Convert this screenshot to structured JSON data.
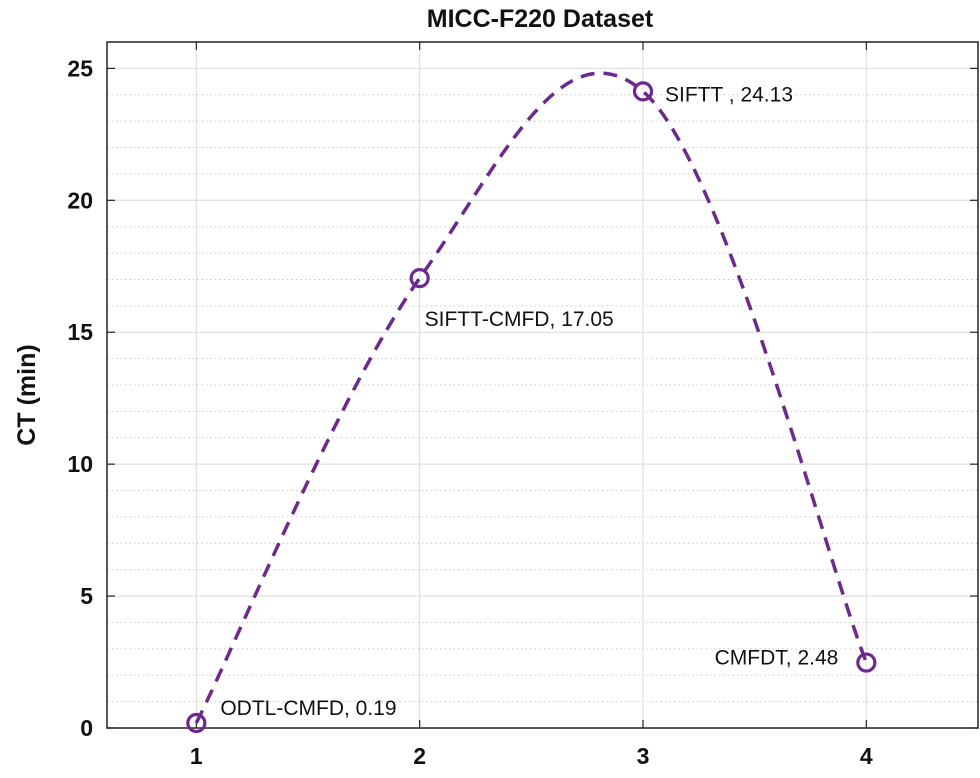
{
  "chart_data": {
    "type": "line",
    "title": "MICC-F220 Dataset",
    "xlabel": "",
    "ylabel": "CT (min)",
    "x": [
      1,
      2,
      3,
      4
    ],
    "values": [
      0.19,
      17.05,
      24.13,
      2.48
    ],
    "labels": [
      "ODTL-CMFD, 0.19",
      "SIFTT-CMFD, 17.05",
      "SIFTT , 24.13",
      "CMFDT, 2.48"
    ],
    "xticks": [
      "1",
      "2",
      "3",
      "4"
    ],
    "yticks": [
      "0",
      "5",
      "10",
      "15",
      "20",
      "25"
    ],
    "xlim": [
      0.6,
      4.5
    ],
    "ylim": [
      0,
      26
    ],
    "grid": true,
    "minor_grid": true,
    "line_style": "dashed",
    "marker": "circle",
    "color": "#6b2a8c"
  }
}
